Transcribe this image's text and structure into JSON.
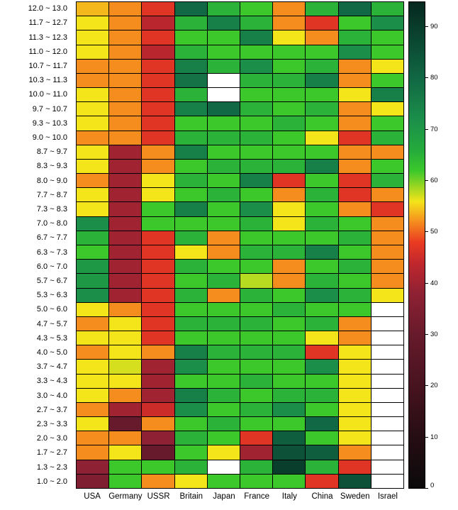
{
  "chart_data": {
    "type": "heatmap",
    "title": "",
    "columns": [
      "USA",
      "Germany",
      "USSR",
      "Britain",
      "Japan",
      "France",
      "Italy",
      "China",
      "Sweden",
      "Israel"
    ],
    "rows": [
      "12.0 ~ 13.0",
      "11.7 ~ 12.7",
      "11.3 ~ 12.3",
      "11.0 ~ 12.0",
      "10.7 ~ 11.7",
      "10.3 ~ 11.3",
      "10.0 ~ 11.0",
      "9.7 ~ 10.7",
      "9.3 ~ 10.3",
      "9.0 ~ 10.0",
      "8.7 ~ 9.7",
      "8.3 ~ 9.3",
      "8.0 ~ 9.0",
      "7.7 ~ 8.7",
      "7.3 ~ 8.3",
      "7.0 ~ 8.0",
      "6.7 ~ 7.7",
      "6.3 ~ 7.3",
      "6.0 ~ 7.0",
      "5.7 ~ 6.7",
      "5.3 ~ 6.3",
      "5.0 ~ 6.0",
      "4.7 ~ 5.7",
      "4.3 ~ 5.3",
      "4.0 ~ 5.0",
      "3.7 ~ 4.7",
      "3.3 ~ 4.3",
      "3.0 ~ 4.0",
      "2.7 ~ 3.7",
      "2.3 ~ 3.3",
      "2.0 ~ 3.0",
      "1.7 ~ 2.7",
      "1.3 ~ 2.3",
      "1.0 ~ 2.0"
    ],
    "values": [
      [
        54,
        52,
        47,
        80,
        65,
        62,
        52,
        65,
        80,
        65
      ],
      [
        56,
        52,
        43,
        65,
        75,
        65,
        52,
        47,
        62,
        72
      ],
      [
        56,
        52,
        47,
        62,
        62,
        75,
        56,
        52,
        65,
        62
      ],
      [
        56,
        52,
        43,
        65,
        62,
        62,
        62,
        62,
        72,
        62
      ],
      [
        52,
        52,
        47,
        75,
        65,
        72,
        62,
        65,
        52,
        56
      ],
      [
        52,
        52,
        47,
        78,
        null,
        65,
        65,
        75,
        52,
        62
      ],
      [
        56,
        52,
        47,
        65,
        null,
        62,
        62,
        62,
        56,
        75
      ],
      [
        56,
        52,
        47,
        75,
        80,
        65,
        62,
        65,
        52,
        56
      ],
      [
        56,
        52,
        47,
        62,
        62,
        62,
        65,
        62,
        52,
        62
      ],
      [
        52,
        52,
        47,
        65,
        65,
        65,
        62,
        56,
        47,
        65
      ],
      [
        56,
        40,
        52,
        75,
        62,
        62,
        62,
        62,
        52,
        52
      ],
      [
        56,
        40,
        52,
        62,
        65,
        65,
        65,
        75,
        52,
        62
      ],
      [
        52,
        40,
        56,
        65,
        62,
        75,
        47,
        62,
        47,
        65
      ],
      [
        56,
        40,
        56,
        62,
        65,
        62,
        52,
        65,
        47,
        52
      ],
      [
        56,
        40,
        62,
        75,
        62,
        72,
        56,
        62,
        52,
        47
      ],
      [
        72,
        40,
        62,
        62,
        62,
        65,
        56,
        65,
        62,
        52
      ],
      [
        65,
        40,
        47,
        65,
        52,
        62,
        62,
        62,
        65,
        52
      ],
      [
        62,
        40,
        47,
        56,
        52,
        65,
        65,
        75,
        62,
        52
      ],
      [
        70,
        40,
        47,
        65,
        62,
        62,
        52,
        62,
        65,
        52
      ],
      [
        70,
        40,
        47,
        62,
        65,
        58,
        52,
        65,
        62,
        52
      ],
      [
        72,
        40,
        47,
        65,
        52,
        65,
        62,
        72,
        65,
        56
      ],
      [
        56,
        52,
        47,
        62,
        62,
        62,
        65,
        62,
        62,
        null
      ],
      [
        52,
        56,
        47,
        65,
        65,
        65,
        62,
        65,
        52,
        null
      ],
      [
        56,
        56,
        47,
        62,
        62,
        62,
        62,
        56,
        52,
        null
      ],
      [
        52,
        56,
        52,
        75,
        65,
        65,
        65,
        47,
        56,
        null
      ],
      [
        56,
        57,
        40,
        72,
        62,
        62,
        62,
        72,
        56,
        null
      ],
      [
        56,
        56,
        40,
        62,
        62,
        65,
        62,
        62,
        56,
        null
      ],
      [
        56,
        52,
        40,
        75,
        65,
        62,
        65,
        65,
        56,
        null
      ],
      [
        52,
        40,
        45,
        72,
        62,
        65,
        72,
        62,
        56,
        null
      ],
      [
        56,
        30,
        52,
        62,
        65,
        62,
        62,
        80,
        56,
        null
      ],
      [
        52,
        52,
        38,
        65,
        62,
        47,
        82,
        62,
        56,
        null
      ],
      [
        52,
        56,
        30,
        62,
        56,
        40,
        85,
        82,
        52,
        null
      ],
      [
        38,
        62,
        62,
        65,
        null,
        65,
        90,
        65,
        47,
        null
      ],
      [
        35,
        62,
        52,
        56,
        62,
        62,
        62,
        47,
        85,
        null
      ]
    ],
    "missing_cell_color": "#ffffff",
    "grid_line_color": "#000000",
    "colorbar": {
      "position": "right",
      "min": 0,
      "max": 95,
      "ticks": [
        0,
        10,
        20,
        30,
        40,
        50,
        60,
        70,
        80,
        90
      ]
    },
    "colormap_stops": [
      [
        0,
        "#0a0a0a"
      ],
      [
        10,
        "#260d14"
      ],
      [
        20,
        "#47131f"
      ],
      [
        30,
        "#671a2b"
      ],
      [
        38,
        "#8e2133"
      ],
      [
        44,
        "#c1272d"
      ],
      [
        48,
        "#ea3a22"
      ],
      [
        52,
        "#f58c1e"
      ],
      [
        56,
        "#f4e41a"
      ],
      [
        62,
        "#3cc82b"
      ],
      [
        66,
        "#25ab3c"
      ],
      [
        72,
        "#1b8f4a"
      ],
      [
        80,
        "#116844"
      ],
      [
        88,
        "#0a4531"
      ],
      [
        95,
        "#05281e"
      ]
    ]
  }
}
